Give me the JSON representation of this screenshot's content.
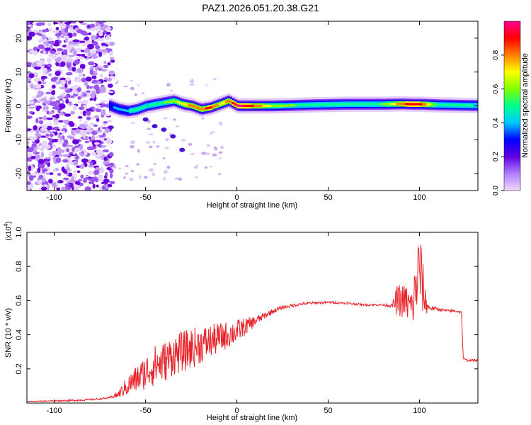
{
  "title": "PAZ1.2026.051.20.38.G21",
  "chart_data": [
    {
      "type": "heatmap",
      "title": "PAZ1.2026.051.20.38.G21",
      "xlabel": "Height of straight line (km)",
      "ylabel": "Frequency (Hz)",
      "xlim": [
        -115,
        132
      ],
      "ylim": [
        -25,
        25
      ],
      "xticks": [
        -100,
        -50,
        0,
        50,
        100
      ],
      "yticks": [
        -20,
        -10,
        0,
        10,
        20
      ],
      "ridge": {
        "x": [
          -70,
          -65,
          -60,
          -55,
          -50,
          -45,
          -40,
          -35,
          -30,
          -25,
          -20,
          -15,
          -10,
          -5,
          0,
          10,
          20,
          40,
          60,
          80,
          90,
          95,
          100,
          110,
          120,
          130
        ],
        "freq": [
          0,
          -1,
          -1.5,
          -1,
          0,
          0.5,
          1,
          1.5,
          0.5,
          0,
          -1,
          -0.5,
          0.5,
          1.5,
          0,
          0,
          0,
          0.3,
          0.5,
          0.5,
          0.6,
          0.5,
          0.5,
          0.3,
          0.2,
          0.1
        ],
        "amp": [
          0.35,
          0.4,
          0.45,
          0.5,
          0.45,
          0.5,
          0.55,
          0.6,
          0.7,
          0.75,
          0.8,
          0.85,
          0.7,
          0.75,
          0.95,
          0.8,
          0.6,
          0.5,
          0.5,
          0.55,
          0.8,
          0.9,
          0.85,
          0.5,
          0.5,
          0.45
        ]
      },
      "branch": {
        "x": [
          -55,
          -50,
          -45,
          -40,
          -35,
          -30
        ],
        "freq": [
          -2,
          -4,
          -6,
          -7,
          -9,
          -13
        ]
      },
      "colorbar": {
        "label": "Normalized spectral amplitude",
        "range": [
          0,
          1
        ],
        "ticks": [
          "0.0",
          "0.2",
          "0.4",
          "0.6",
          "0.8"
        ],
        "colors": [
          "#f0d8ff",
          "#b080ff",
          "#6000e0",
          "#0000ff",
          "#00c8ff",
          "#00ff90",
          "#80ff00",
          "#ffff00",
          "#ff8000",
          "#ff0000",
          "#ff0090"
        ]
      }
    },
    {
      "type": "line",
      "xlabel": "Height of straight line (km)",
      "ylabel": "SNR (10 * v/v)",
      "yscale_label": "(x10^4)",
      "xlim": [
        -115,
        132
      ],
      "ylim": [
        0,
        1.0
      ],
      "xticks": [
        -100,
        -50,
        0,
        50,
        100
      ],
      "yticks": [
        0.2,
        0.4,
        0.6,
        0.8,
        1.0
      ],
      "series": [
        {
          "name": "SNR",
          "color": "#e8232a",
          "x": [
            -115,
            -90,
            -80,
            -70,
            -65,
            -60,
            -55,
            -50,
            -45,
            -40,
            -35,
            -30,
            -25,
            -20,
            -15,
            -10,
            -5,
            0,
            5,
            10,
            15,
            20,
            25,
            30,
            35,
            40,
            50,
            60,
            70,
            75,
            80,
            85,
            88,
            92,
            96,
            100,
            103,
            105,
            110,
            115,
            120,
            123,
            124,
            126,
            132
          ],
          "y": [
            0.01,
            0.015,
            0.02,
            0.03,
            0.05,
            0.1,
            0.14,
            0.18,
            0.22,
            0.24,
            0.28,
            0.3,
            0.32,
            0.34,
            0.36,
            0.38,
            0.4,
            0.42,
            0.45,
            0.48,
            0.51,
            0.54,
            0.56,
            0.57,
            0.58,
            0.585,
            0.59,
            0.585,
            0.575,
            0.575,
            0.575,
            0.57,
            0.6,
            0.6,
            0.55,
            0.8,
            0.6,
            0.56,
            0.55,
            0.54,
            0.54,
            0.53,
            0.26,
            0.25,
            0.25
          ],
          "noise": [
            0,
            0.005,
            0.005,
            0.005,
            0.02,
            0.06,
            0.08,
            0.1,
            0.12,
            0.12,
            0.12,
            0.12,
            0.12,
            0.11,
            0.1,
            0.09,
            0.08,
            0.07,
            0.05,
            0.03,
            0.02,
            0.015,
            0.01,
            0.01,
            0.008,
            0.008,
            0.006,
            0.006,
            0.006,
            0.006,
            0.006,
            0.01,
            0.1,
            0.1,
            0.12,
            0.25,
            0.1,
            0.02,
            0.008,
            0.008,
            0.008,
            0.008,
            0.006,
            0.006,
            0.006
          ]
        }
      ]
    }
  ]
}
